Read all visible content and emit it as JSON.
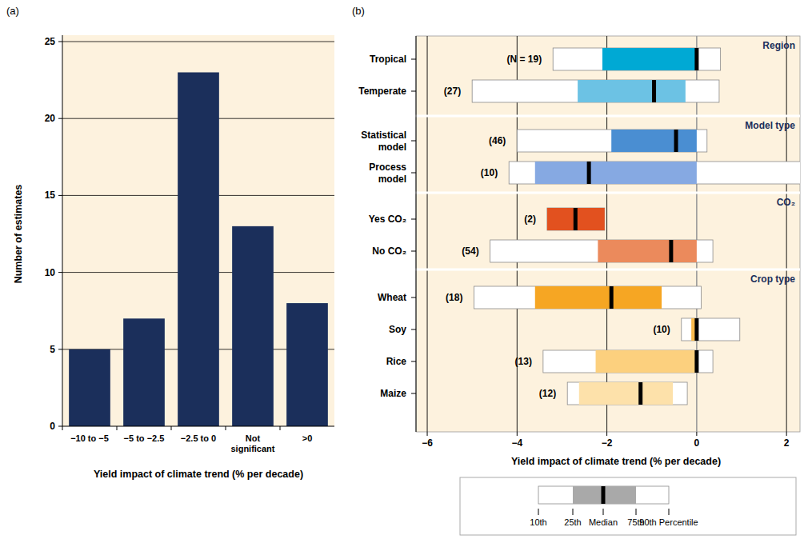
{
  "chart_data": [
    {
      "type": "bar",
      "panel": "(a)",
      "categories": [
        "−10 to −5",
        "−5 to −2.5",
        "−2.5 to 0",
        "Not\nsignificant",
        ">0"
      ],
      "values": [
        5,
        7,
        23,
        13,
        8
      ],
      "color": "#1b2f5b",
      "ylim": [
        0,
        25
      ],
      "yticks": [
        0,
        5,
        10,
        15,
        20,
        25
      ],
      "grid": true,
      "x_label": "Yield impact of climate trend (% per decade)",
      "y_label": "Number of estimates"
    },
    {
      "type": "box",
      "panel": "(b)",
      "orientation": "horizontal",
      "xlim": [
        -6.25,
        2.3
      ],
      "xticks": [
        {
          "value": -6,
          "label": "−6"
        },
        {
          "value": -4,
          "label": "−4"
        },
        {
          "value": -2,
          "label": "−2"
        },
        0,
        2
      ],
      "grid": true,
      "x_label": "Yield impact of climate trend  (% per decade)",
      "groups": [
        {
          "name": "Region",
          "rows": [
            {
              "label": "Tropical",
              "n_label": "(N = 19)",
              "p10": -3.2,
              "p25": -2.1,
              "median": 0,
              "p75": 0,
              "p90": 0.53,
              "color": "#00a9d4"
            },
            {
              "label": "Temperate",
              "n_label": "(27)",
              "p10": -5.0,
              "p25": -2.65,
              "median": -0.95,
              "p75": -0.25,
              "p90": 0.5,
              "color": "#6cc2e4"
            }
          ]
        },
        {
          "name": "Model type",
          "rows": [
            {
              "label": "Statistical\nmodel",
              "n_label": "(46)",
              "p10": -4.0,
              "p25": -1.9,
              "median": -0.46,
              "p75": 0,
              "p90": 0.23,
              "color": "#4a8ed2"
            },
            {
              "label": "Process\nmodel",
              "n_label": "(10)",
              "p10": -4.18,
              "p25": -3.6,
              "median": -2.4,
              "p75": 0,
              "p90": 2.5,
              "color": "#86a9e2"
            }
          ]
        },
        {
          "name": "CO₂",
          "rows": [
            {
              "label": "Yes CO₂",
              "n_label": "(2)",
              "p10": -3.33,
              "p25": -3.33,
              "median": -2.7,
              "p75": -2.05,
              "p90": -2.05,
              "color": "#e2511f"
            },
            {
              "label": "No CO₂",
              "n_label": "(54)",
              "p10": -4.6,
              "p25": -2.2,
              "median": -0.57,
              "p75": 0,
              "p90": 0.36,
              "color": "#eb8a5c"
            }
          ]
        },
        {
          "name": "Crop type",
          "rows": [
            {
              "label": "Wheat",
              "n_label": "(18)",
              "p10": -4.96,
              "p25": -3.6,
              "median": -1.9,
              "p75": -0.78,
              "p90": 0.1,
              "color": "#f6a623"
            },
            {
              "label": "Soy",
              "n_label": "(10)",
              "p10": -0.34,
              "p25": -0.12,
              "median": 0,
              "p75": 0,
              "p90": 0.96,
              "color": "#f8b94c"
            },
            {
              "label": "Rice",
              "n_label": "(13)",
              "p10": -3.42,
              "p25": -2.25,
              "median": 0,
              "p75": 0,
              "p90": 0.36,
              "color": "#fcd07e"
            },
            {
              "label": "Maize",
              "n_label": "(12)",
              "p10": -2.88,
              "p25": -2.62,
              "median": -1.25,
              "p75": -0.53,
              "p90": -0.21,
              "color": "#fde1aa"
            }
          ]
        }
      ],
      "key_labels": [
        "10th",
        "25th",
        "Median",
        "75th",
        "90th Percentile"
      ]
    }
  ]
}
